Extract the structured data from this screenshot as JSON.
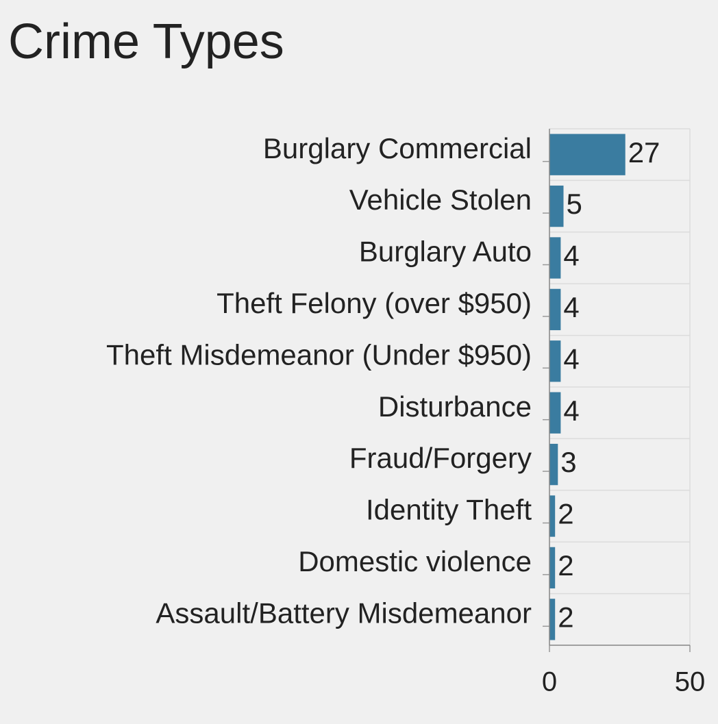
{
  "chart_data": {
    "type": "bar",
    "orientation": "horizontal",
    "title": "Crime Types",
    "categories": [
      "Burglary Commercial",
      "Vehicle Stolen",
      "Burglary Auto",
      "Theft Felony (over $950)",
      "Theft Misdemeanor (Under $950)",
      "Disturbance",
      "Fraud/Forgery",
      "Identity Theft",
      "Domestic violence",
      "Assault/Battery Misdemeanor"
    ],
    "values": [
      27,
      5,
      4,
      4,
      4,
      4,
      3,
      2,
      2,
      2
    ],
    "color": "#3a7ca0",
    "xlim": [
      0,
      50
    ],
    "xticks": [
      0,
      50
    ],
    "grid": true
  }
}
